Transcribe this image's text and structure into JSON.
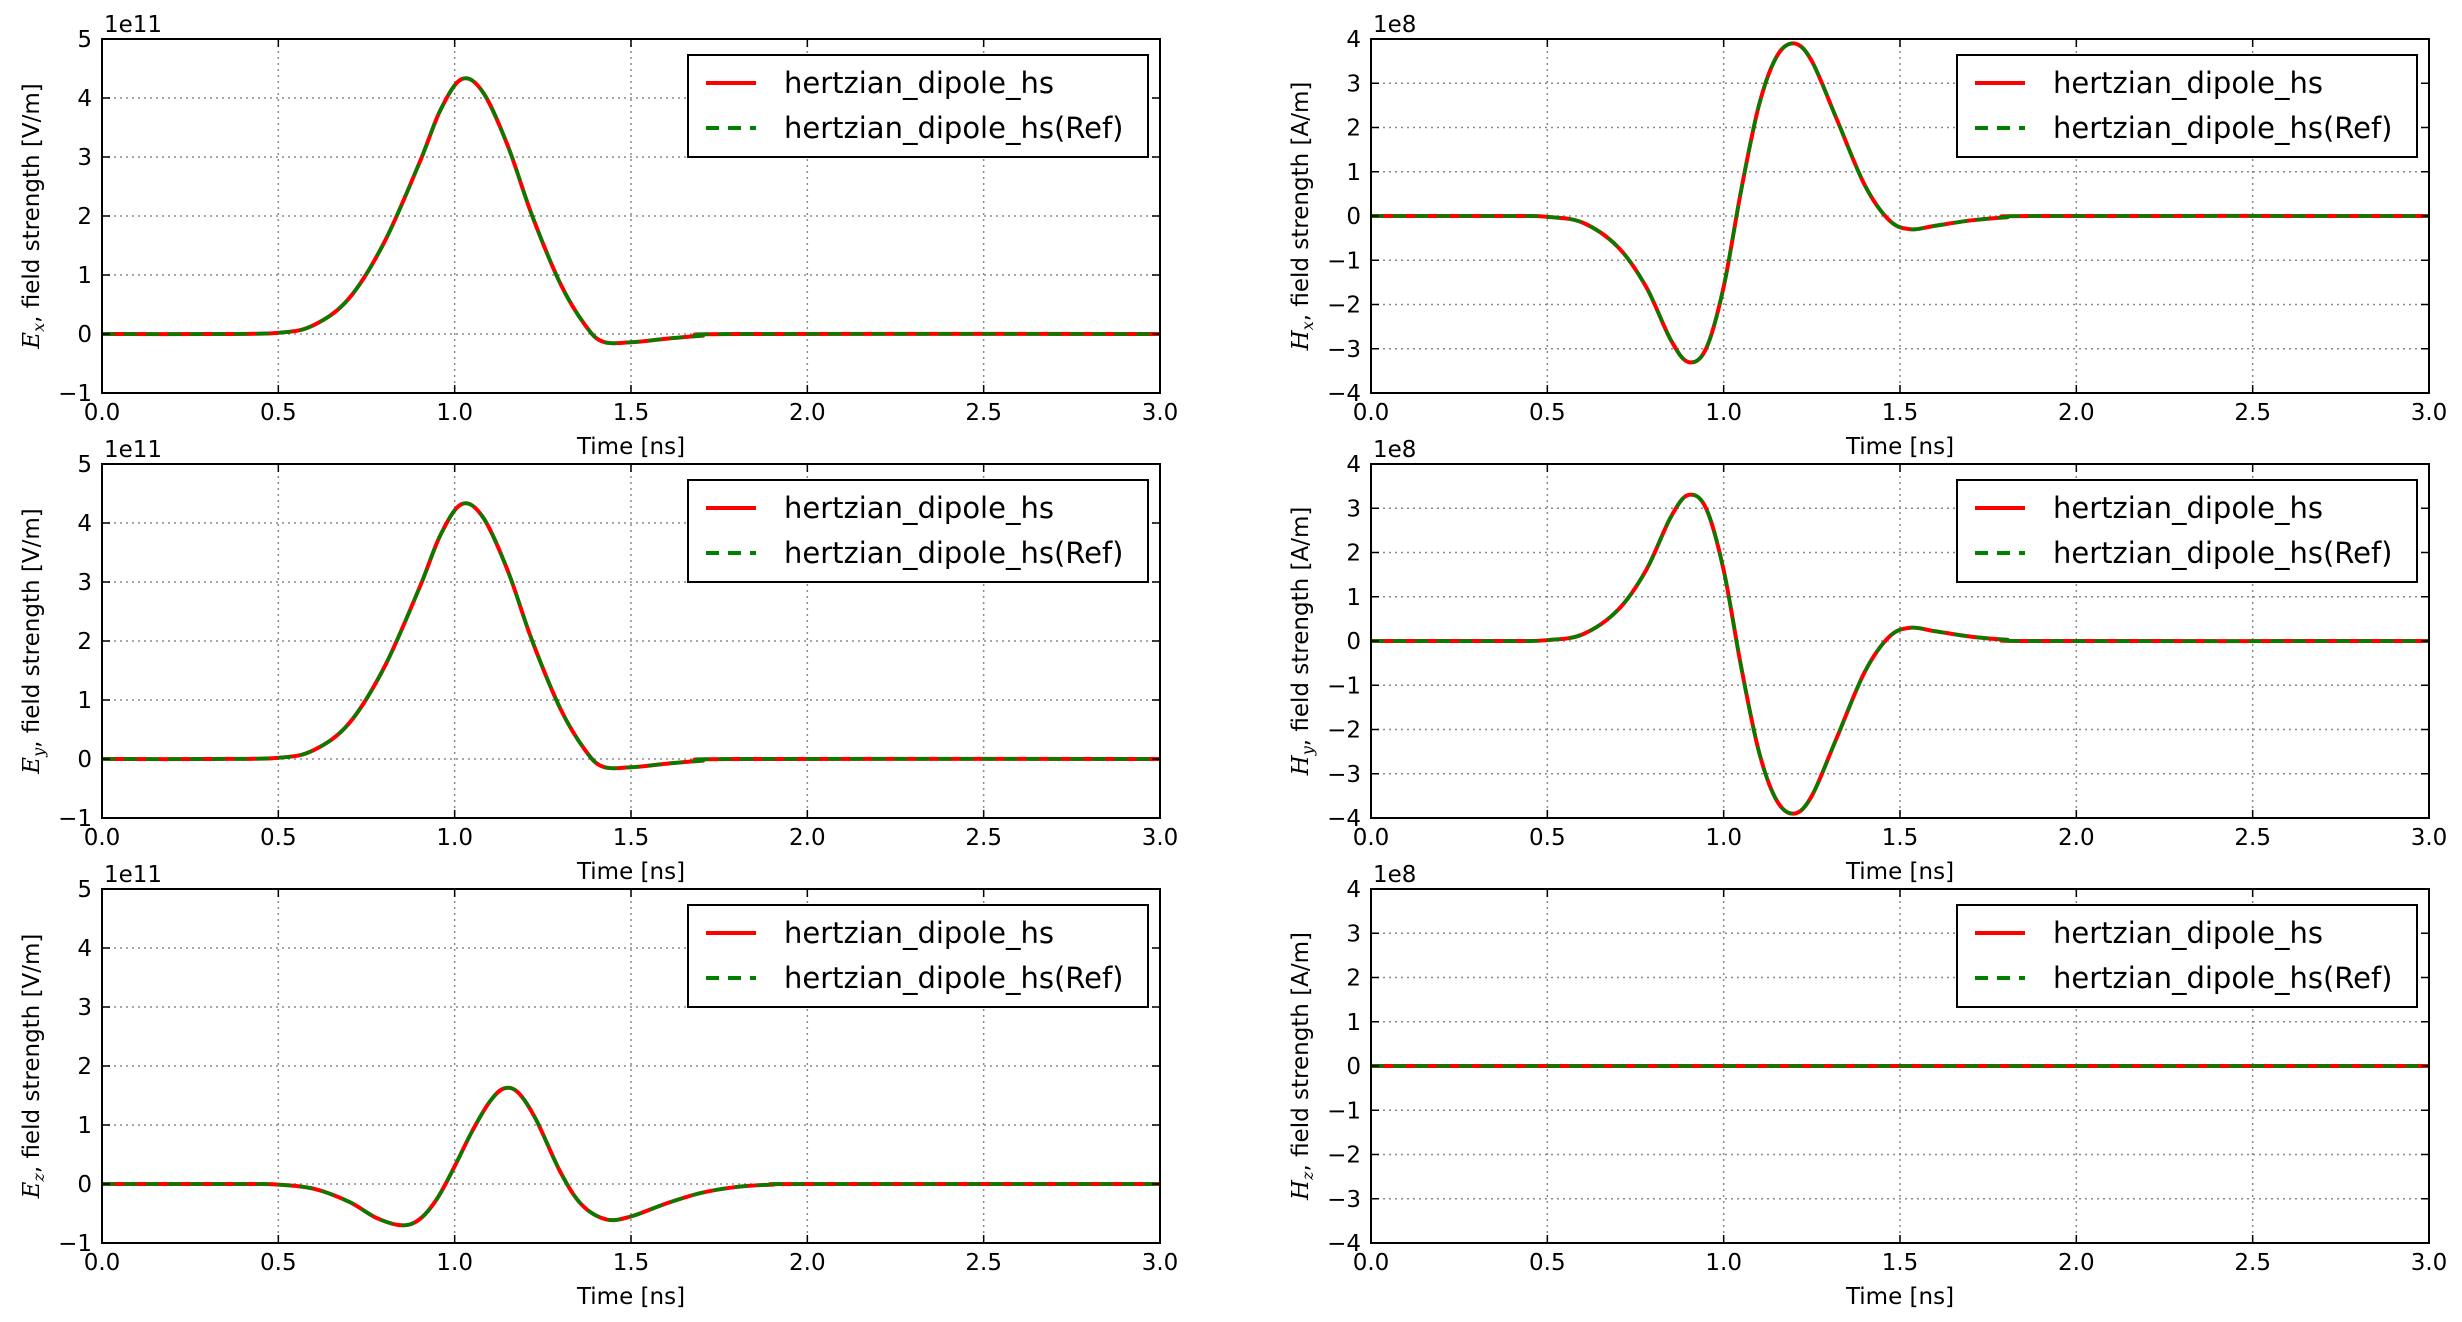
{
  "figure": {
    "x_label": "Time [ns]",
    "legend": [
      "hertzian_dipole_hs",
      "hertzian_dipole_hs(Ref)"
    ],
    "colors": {
      "model": "#ff0000",
      "reference": "#008000",
      "grid": "#8a8a8a",
      "axes": "#000000"
    }
  },
  "chart_data": [
    {
      "type": "line",
      "panel": "Ex",
      "ylabel_symbol": "E",
      "ylabel_sub": "x",
      "ylabel_rest": ", field strength [V/m]",
      "offset_text": "1e11",
      "xlim": [
        0.0,
        3.0
      ],
      "ylim": [
        -1,
        5
      ],
      "xticks": [
        "0.0",
        "0.5",
        "1.0",
        "1.5",
        "2.0",
        "2.5",
        "3.0"
      ],
      "yticks": [
        "−1",
        "0",
        "1",
        "2",
        "3",
        "4",
        "5"
      ],
      "legend_position": "upper-right",
      "series": [
        {
          "name": "hertzian_dipole_hs",
          "style": "solid",
          "color": "#ff0000"
        },
        {
          "name": "hertzian_dipole_hs(Ref)",
          "style": "dashed",
          "color": "#008000"
        }
      ],
      "points": [
        [
          0.0,
          0
        ],
        [
          0.3,
          0
        ],
        [
          0.5,
          0.02
        ],
        [
          0.6,
          0.15
        ],
        [
          0.7,
          0.6
        ],
        [
          0.8,
          1.55
        ],
        [
          0.9,
          2.9
        ],
        [
          0.96,
          3.8
        ],
        [
          1.02,
          4.32
        ],
        [
          1.08,
          4.1
        ],
        [
          1.15,
          3.2
        ],
        [
          1.22,
          2.0
        ],
        [
          1.3,
          0.85
        ],
        [
          1.37,
          0.15
        ],
        [
          1.42,
          -0.13
        ],
        [
          1.5,
          -0.14
        ],
        [
          1.6,
          -0.08
        ],
        [
          1.7,
          -0.03
        ],
        [
          1.8,
          0
        ],
        [
          3.0,
          0
        ]
      ]
    },
    {
      "type": "line",
      "panel": "Hx",
      "ylabel_symbol": "H",
      "ylabel_sub": "x",
      "ylabel_rest": ", field strength [A/m]",
      "offset_text": "1e8",
      "xlim": [
        0.0,
        3.0
      ],
      "ylim": [
        -4,
        4
      ],
      "xticks": [
        "0.0",
        "0.5",
        "1.0",
        "1.5",
        "2.0",
        "2.5",
        "3.0"
      ],
      "yticks": [
        "−4",
        "−3",
        "−2",
        "−1",
        "0",
        "1",
        "2",
        "3",
        "4"
      ],
      "legend_position": "upper-right",
      "series": [
        {
          "name": "hertzian_dipole_hs",
          "style": "solid",
          "color": "#ff0000"
        },
        {
          "name": "hertzian_dipole_hs(Ref)",
          "style": "dashed",
          "color": "#008000"
        }
      ],
      "points": [
        [
          0.0,
          0
        ],
        [
          0.4,
          0
        ],
        [
          0.5,
          -0.02
        ],
        [
          0.6,
          -0.15
        ],
        [
          0.7,
          -0.7
        ],
        [
          0.78,
          -1.6
        ],
        [
          0.85,
          -2.8
        ],
        [
          0.9,
          -3.3
        ],
        [
          0.95,
          -3.0
        ],
        [
          1.0,
          -1.6
        ],
        [
          1.05,
          0.6
        ],
        [
          1.1,
          2.5
        ],
        [
          1.15,
          3.6
        ],
        [
          1.2,
          3.9
        ],
        [
          1.25,
          3.5
        ],
        [
          1.32,
          2.2
        ],
        [
          1.4,
          0.7
        ],
        [
          1.47,
          -0.1
        ],
        [
          1.53,
          -0.3
        ],
        [
          1.6,
          -0.22
        ],
        [
          1.7,
          -0.1
        ],
        [
          1.8,
          -0.03
        ],
        [
          1.9,
          0
        ],
        [
          3.0,
          0
        ]
      ]
    },
    {
      "type": "line",
      "panel": "Ey",
      "ylabel_symbol": "E",
      "ylabel_sub": "y",
      "ylabel_rest": ", field strength [V/m]",
      "offset_text": "1e11",
      "xlim": [
        0.0,
        3.0
      ],
      "ylim": [
        -1,
        5
      ],
      "xticks": [
        "0.0",
        "0.5",
        "1.0",
        "1.5",
        "2.0",
        "2.5",
        "3.0"
      ],
      "yticks": [
        "−1",
        "0",
        "1",
        "2",
        "3",
        "4",
        "5"
      ],
      "legend_position": "upper-right",
      "series": [
        {
          "name": "hertzian_dipole_hs",
          "style": "solid",
          "color": "#ff0000"
        },
        {
          "name": "hertzian_dipole_hs(Ref)",
          "style": "dashed",
          "color": "#008000"
        }
      ],
      "points": [
        [
          0.0,
          0
        ],
        [
          0.3,
          0
        ],
        [
          0.5,
          0.02
        ],
        [
          0.6,
          0.15
        ],
        [
          0.7,
          0.6
        ],
        [
          0.8,
          1.55
        ],
        [
          0.9,
          2.9
        ],
        [
          0.96,
          3.8
        ],
        [
          1.02,
          4.32
        ],
        [
          1.08,
          4.1
        ],
        [
          1.15,
          3.2
        ],
        [
          1.22,
          2.0
        ],
        [
          1.3,
          0.85
        ],
        [
          1.37,
          0.15
        ],
        [
          1.42,
          -0.13
        ],
        [
          1.5,
          -0.14
        ],
        [
          1.6,
          -0.08
        ],
        [
          1.7,
          -0.03
        ],
        [
          1.8,
          0
        ],
        [
          3.0,
          0
        ]
      ]
    },
    {
      "type": "line",
      "panel": "Hy",
      "ylabel_symbol": "H",
      "ylabel_sub": "y",
      "ylabel_rest": ", field strength [A/m]",
      "offset_text": "1e8",
      "xlim": [
        0.0,
        3.0
      ],
      "ylim": [
        -4,
        4
      ],
      "xticks": [
        "0.0",
        "0.5",
        "1.0",
        "1.5",
        "2.0",
        "2.5",
        "3.0"
      ],
      "yticks": [
        "−4",
        "−3",
        "−2",
        "−1",
        "0",
        "1",
        "2",
        "3",
        "4"
      ],
      "legend_position": "upper-right",
      "series": [
        {
          "name": "hertzian_dipole_hs",
          "style": "solid",
          "color": "#ff0000"
        },
        {
          "name": "hertzian_dipole_hs(Ref)",
          "style": "dashed",
          "color": "#008000"
        }
      ],
      "points": [
        [
          0.0,
          0
        ],
        [
          0.4,
          0
        ],
        [
          0.5,
          0.02
        ],
        [
          0.6,
          0.15
        ],
        [
          0.7,
          0.7
        ],
        [
          0.78,
          1.6
        ],
        [
          0.85,
          2.8
        ],
        [
          0.9,
          3.3
        ],
        [
          0.95,
          3.0
        ],
        [
          1.0,
          1.6
        ],
        [
          1.05,
          -0.6
        ],
        [
          1.1,
          -2.5
        ],
        [
          1.15,
          -3.6
        ],
        [
          1.2,
          -3.9
        ],
        [
          1.25,
          -3.5
        ],
        [
          1.32,
          -2.2
        ],
        [
          1.4,
          -0.7
        ],
        [
          1.47,
          0.1
        ],
        [
          1.53,
          0.3
        ],
        [
          1.6,
          0.22
        ],
        [
          1.7,
          0.1
        ],
        [
          1.8,
          0.03
        ],
        [
          1.9,
          0
        ],
        [
          3.0,
          0
        ]
      ]
    },
    {
      "type": "line",
      "panel": "Ez",
      "ylabel_symbol": "E",
      "ylabel_sub": "z",
      "ylabel_rest": ", field strength [V/m]",
      "offset_text": "1e11",
      "xlim": [
        0.0,
        3.0
      ],
      "ylim": [
        -1,
        5
      ],
      "xticks": [
        "0.0",
        "0.5",
        "1.0",
        "1.5",
        "2.0",
        "2.5",
        "3.0"
      ],
      "yticks": [
        "−1",
        "0",
        "1",
        "2",
        "3",
        "4",
        "5"
      ],
      "legend_position": "upper-right",
      "series": [
        {
          "name": "hertzian_dipole_hs",
          "style": "solid",
          "color": "#ff0000"
        },
        {
          "name": "hertzian_dipole_hs(Ref)",
          "style": "dashed",
          "color": "#008000"
        }
      ],
      "points": [
        [
          0.0,
          0
        ],
        [
          0.4,
          0
        ],
        [
          0.5,
          -0.01
        ],
        [
          0.6,
          -0.08
        ],
        [
          0.7,
          -0.3
        ],
        [
          0.78,
          -0.58
        ],
        [
          0.85,
          -0.7
        ],
        [
          0.9,
          -0.6
        ],
        [
          0.95,
          -0.25
        ],
        [
          1.0,
          0.3
        ],
        [
          1.05,
          0.9
        ],
        [
          1.1,
          1.4
        ],
        [
          1.14,
          1.62
        ],
        [
          1.18,
          1.55
        ],
        [
          1.23,
          1.1
        ],
        [
          1.3,
          0.2
        ],
        [
          1.36,
          -0.35
        ],
        [
          1.43,
          -0.6
        ],
        [
          1.5,
          -0.55
        ],
        [
          1.6,
          -0.33
        ],
        [
          1.7,
          -0.15
        ],
        [
          1.8,
          -0.05
        ],
        [
          1.9,
          -0.01
        ],
        [
          2.0,
          0
        ],
        [
          3.0,
          0
        ]
      ]
    },
    {
      "type": "line",
      "panel": "Hz",
      "ylabel_symbol": "H",
      "ylabel_sub": "z",
      "ylabel_rest": ", field strength [A/m]",
      "offset_text": "1e8",
      "xlim": [
        0.0,
        3.0
      ],
      "ylim": [
        -4,
        4
      ],
      "xticks": [
        "0.0",
        "0.5",
        "1.0",
        "1.5",
        "2.0",
        "2.5",
        "3.0"
      ],
      "yticks": [
        "−4",
        "−3",
        "−2",
        "−1",
        "0",
        "1",
        "2",
        "3",
        "4"
      ],
      "legend_position": "upper-right",
      "series": [
        {
          "name": "hertzian_dipole_hs",
          "style": "solid",
          "color": "#ff0000"
        },
        {
          "name": "hertzian_dipole_hs(Ref)",
          "style": "dashed",
          "color": "#008000"
        }
      ],
      "points": [
        [
          0.0,
          0
        ],
        [
          3.0,
          0
        ]
      ]
    }
  ]
}
